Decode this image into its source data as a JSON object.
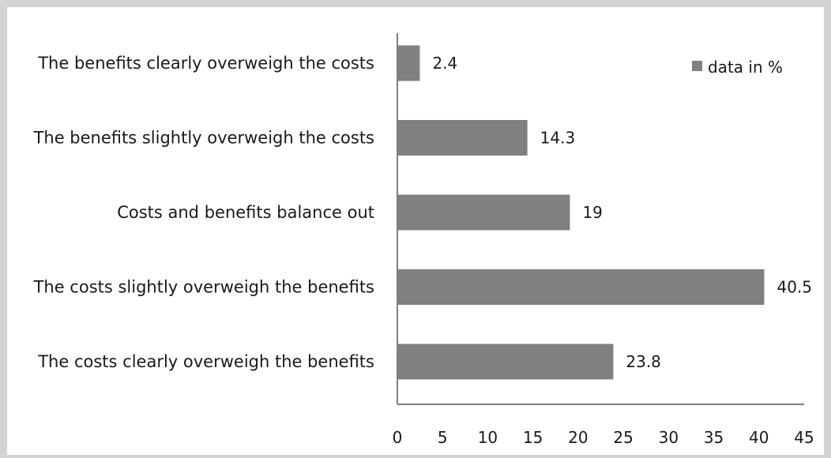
{
  "chart_data": {
    "type": "bar",
    "orientation": "horizontal",
    "categories": [
      "The benefits clearly overweigh the costs",
      "The benefits slightly overweigh the costs",
      "Costs and benefits balance out",
      "The costs slightly overweigh the benefits",
      "The costs clearly overweigh the benefits"
    ],
    "series": [
      {
        "name": "data in %",
        "values": [
          2.4,
          14.3,
          19,
          40.5,
          23.8
        ],
        "color": "#808080"
      }
    ],
    "value_labels": [
      "2.4",
      "14.3",
      "19",
      "40.5",
      "23.8"
    ],
    "xlim": [
      0,
      45
    ],
    "xticks": [
      "0",
      "5",
      "10",
      "15",
      "20",
      "25",
      "30",
      "35",
      "40",
      "45"
    ],
    "grid": false,
    "legend": {
      "position": "top-right",
      "label": "data in %"
    }
  }
}
